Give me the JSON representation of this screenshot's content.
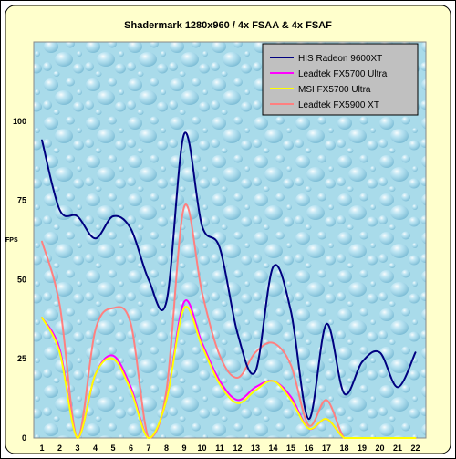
{
  "chart_data": {
    "type": "line",
    "title": "Shadermark 1280x960 / 4x FSAA & 4x FSAF",
    "xlabel": "",
    "ylabel": "FPS",
    "x": [
      "1",
      "2",
      "3",
      "4",
      "5",
      "6",
      "7",
      "8",
      "9",
      "10",
      "11",
      "12",
      "13",
      "14",
      "15",
      "16",
      "17",
      "18",
      "19",
      "20",
      "21",
      "22"
    ],
    "ylim": [
      0,
      125
    ],
    "yticks": [
      "0",
      "25",
      "50",
      "75",
      "100"
    ],
    "grid": false,
    "legend_position": "top-right",
    "series": [
      {
        "name": "HIS Radeon 9600XT",
        "color": "#000080",
        "values": [
          94,
          72,
          70,
          63,
          70,
          66,
          50,
          43,
          96,
          67,
          60,
          33,
          21,
          54,
          40,
          6,
          36,
          14,
          24,
          27,
          16,
          27
        ]
      },
      {
        "name": "Leadtek FX5700 Ultra",
        "color": "#ff00ff",
        "values": [
          38,
          28,
          0,
          20,
          26,
          16,
          0,
          12,
          43,
          30,
          18,
          12,
          16,
          18,
          13,
          3,
          6,
          0,
          0,
          0,
          0,
          0
        ]
      },
      {
        "name": "MSI FX5700 Ultra",
        "color": "#ffff00",
        "values": [
          38,
          27,
          0,
          20,
          25,
          15,
          0,
          12,
          41,
          29,
          17,
          11,
          15,
          18,
          12,
          3,
          6,
          0,
          0,
          0,
          0,
          0
        ]
      },
      {
        "name": "Leadtek FX5900 XT",
        "color": "#ff8080",
        "values": [
          62,
          42,
          0,
          34,
          41,
          36,
          0,
          15,
          73,
          46,
          26,
          19,
          27,
          30,
          23,
          4,
          12,
          0,
          0,
          0,
          0,
          0
        ]
      }
    ]
  }
}
